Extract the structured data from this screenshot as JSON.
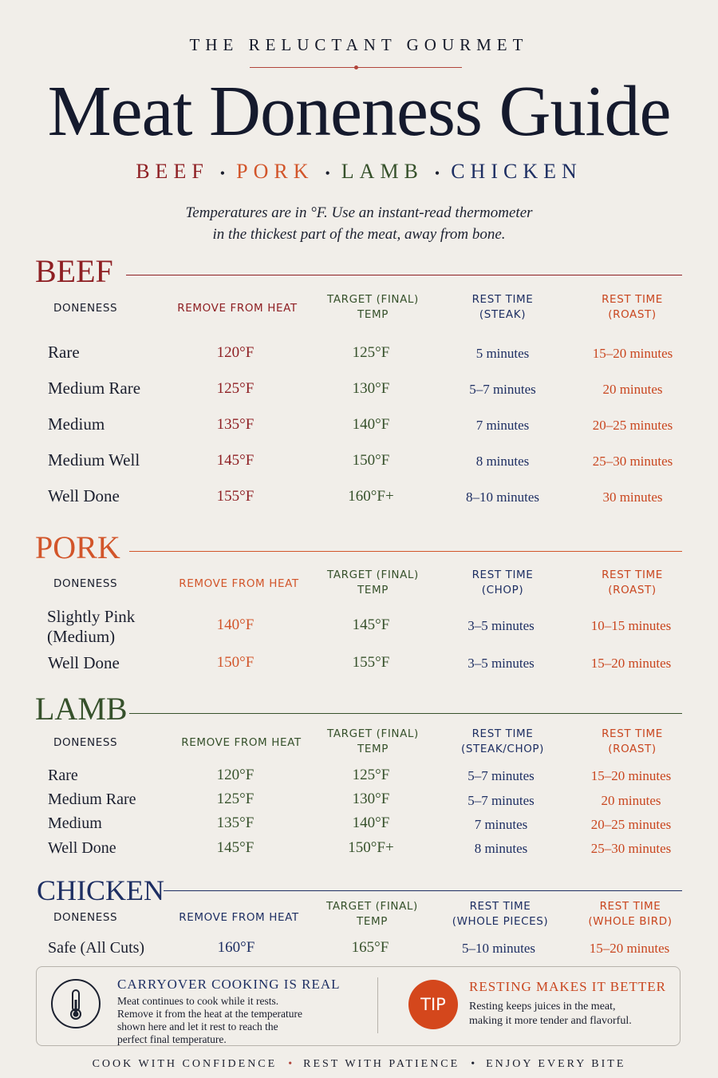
{
  "brand": "THE RELUCTANT GOURMET",
  "title": "Meat Doneness Guide",
  "meats": [
    {
      "label": "BEEF",
      "color": "#8e1f23"
    },
    {
      "label": "PORK",
      "color": "#d2552a"
    },
    {
      "label": "LAMB",
      "color": "#36512b"
    },
    {
      "label": "CHICKEN",
      "color": "#1e2f63"
    }
  ],
  "intro_line1": "Temperatures are in °F. Use an instant-read thermometer",
  "intro_line2": "in the thickest part of the meat, away from bone.",
  "beef": {
    "title": "BEEF",
    "headers": {
      "doneness": "DONENESS",
      "remove": "REMOVE FROM HEAT",
      "target1": "TARGET (FINAL)",
      "target2": "TEMP",
      "rest_a1": "REST TIME",
      "rest_a2": "(STEAK)",
      "rest_b1": "REST TIME",
      "rest_b2": "(ROAST)"
    },
    "rows": [
      [
        "Rare",
        "120°F",
        "125°F",
        "5 minutes",
        "15–20 minutes"
      ],
      [
        "Medium Rare",
        "125°F",
        "130°F",
        "5–7 minutes",
        "20 minutes"
      ],
      [
        "Medium",
        "135°F",
        "140°F",
        "7 minutes",
        "20–25 minutes"
      ],
      [
        "Medium Well",
        "145°F",
        "150°F",
        "8 minutes",
        "25–30 minutes"
      ],
      [
        "Well Done",
        "155°F",
        "160°F+",
        "8–10 minutes",
        "30 minutes"
      ]
    ]
  },
  "pork": {
    "title": "PORK",
    "headers": {
      "doneness": "DONENESS",
      "remove": "REMOVE FROM HEAT",
      "target1": "TARGET (FINAL)",
      "target2": "TEMP",
      "rest_a1": "REST TIME",
      "rest_a2": "(CHOP)",
      "rest_b1": "REST TIME",
      "rest_b2": "(ROAST)"
    },
    "rows": [
      [
        "Slightly Pink",
        "(Medium)",
        "140°F",
        "145°F",
        "3–5 minutes",
        "10–15 minutes"
      ],
      [
        "Well Done",
        "",
        "150°F",
        "155°F",
        "3–5 minutes",
        "15–20 minutes"
      ]
    ]
  },
  "lamb": {
    "title": "LAMB",
    "headers": {
      "doneness": "DONENESS",
      "remove": "REMOVE FROM HEAT",
      "target1": "TARGET (FINAL)",
      "target2": "TEMP",
      "rest_a1": "REST TIME",
      "rest_a2": "(STEAK/CHOP)",
      "rest_b1": "REST TIME",
      "rest_b2": "(ROAST)"
    },
    "rows": [
      [
        "Rare",
        "120°F",
        "125°F",
        "5–7 minutes",
        "15–20 minutes"
      ],
      [
        "Medium Rare",
        "125°F",
        "130°F",
        "5–7 minutes",
        "20 minutes"
      ],
      [
        "Medium",
        "135°F",
        "140°F",
        "7 minutes",
        "20–25 minutes"
      ],
      [
        "Well Done",
        "145°F",
        "150°F+",
        "8 minutes",
        "25–30 minutes"
      ]
    ]
  },
  "chicken": {
    "title": "CHICKEN",
    "headers": {
      "doneness": "DONENESS",
      "remove": "REMOVE FROM HEAT",
      "target1": "TARGET (FINAL)",
      "target2": "TEMP",
      "rest_a1": "REST TIME",
      "rest_a2": "(WHOLE PIECES)",
      "rest_b1": "REST TIME",
      "rest_b2": "(WHOLE BIRD)"
    },
    "rows": [
      [
        "Safe (All Cuts)",
        "160°F",
        "165°F",
        "5–10 minutes",
        "15–20 minutes"
      ]
    ]
  },
  "carryover": {
    "heading": "CARRYOVER COOKING IS REAL",
    "lines": [
      "Meat continues to cook while it rests.",
      "Remove it from the heat at the temperature",
      "shown here and let it rest to reach the",
      "perfect final temperature."
    ],
    "icon": "thermometer-icon"
  },
  "tip": {
    "badge": "TIP",
    "heading": "RESTING MAKES IT BETTER",
    "lines": [
      "Resting keeps juices in the meat,",
      "making it more tender and flavorful."
    ]
  },
  "footer": [
    "COOK WITH CONFIDENCE",
    "REST WITH PATIENCE",
    "ENJOY EVERY BITE"
  ]
}
